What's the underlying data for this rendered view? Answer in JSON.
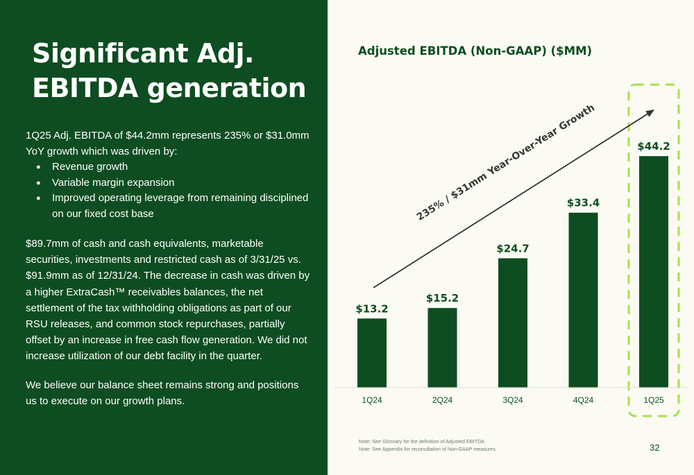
{
  "slide": {
    "title": "Significant Adj. EBITDA generation",
    "intro": "1Q25 Adj. EBITDA of $44.2mm represents 235% or $31.0mm YoY growth which was driven by:",
    "bullets": [
      "Revenue growth",
      "Variable margin expansion",
      "Improved operating leverage from remaining disciplined on our fixed cost base"
    ],
    "cash_paragraph": "$89.7mm of cash and cash equivalents, marketable securities, investments and restricted cash as of 3/31/25 vs. $91.9mm as of 12/31/24. The decrease in cash was driven by a higher ExtraCash™ receivables balances, the net settlement of the tax withholding obligations as part of our RSU releases, and common stock repurchases, partially offset by an increase in free cash flow generation. We did not increase utilization of our debt facility in the quarter.",
    "balance_paragraph": "We believe our balance sheet remains strong and positions us to execute on our growth plans.",
    "footnotes": [
      "Note: See Glossary for the definition of Adjusted EBITDA",
      "Note: See Appendix for reconciliation of Non-GAAP measures."
    ],
    "page_number": "32"
  },
  "chart_data": {
    "type": "bar",
    "title": "Adjusted EBITDA (Non-GAAP) ($MM)",
    "categories": [
      "1Q24",
      "2Q24",
      "3Q24",
      "4Q24",
      "1Q25"
    ],
    "values": [
      13.2,
      15.2,
      24.7,
      33.4,
      44.2
    ],
    "value_labels": [
      "$13.2",
      "$15.2",
      "$24.7",
      "$33.4",
      "$44.2"
    ],
    "annotation": "235% / $31mm Year-Over-Year Growth",
    "highlight_category": "1Q25",
    "ylim": [
      0,
      47
    ],
    "grid": false,
    "colors": {
      "bar": "#0e4d21",
      "highlight_border": "#a6e14e",
      "arrow": "#333333",
      "label": "#0e4d21",
      "tick": "#0e4d21"
    }
  }
}
